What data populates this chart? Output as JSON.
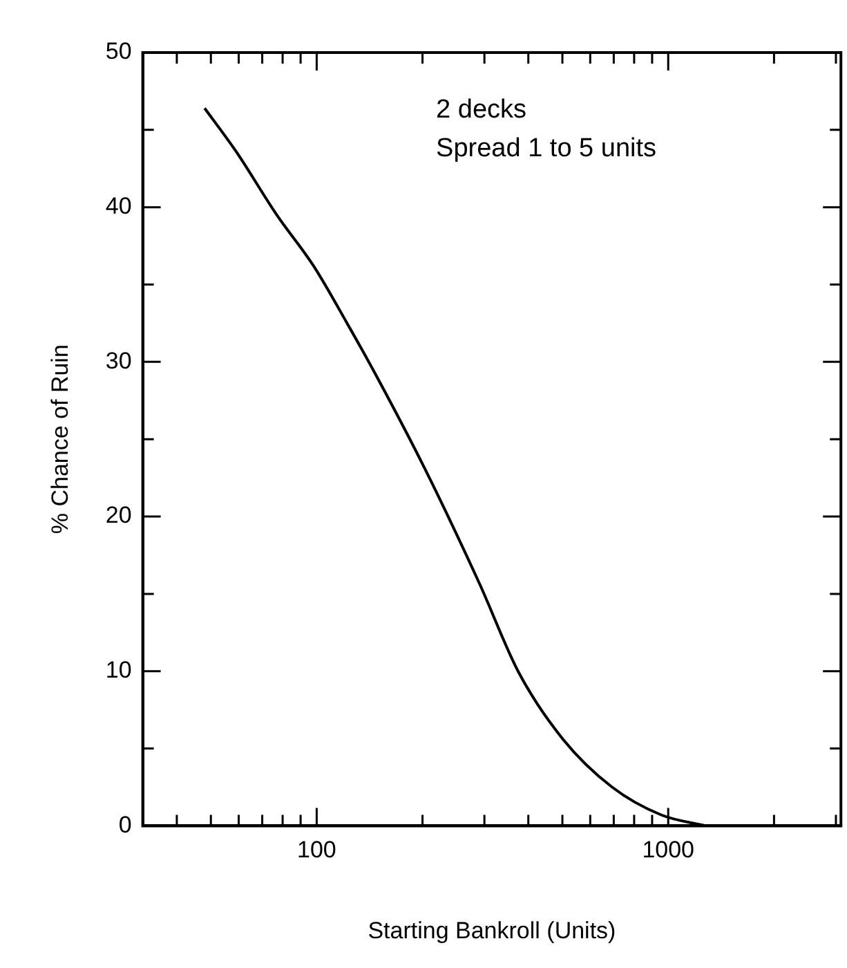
{
  "chart_data": {
    "type": "line",
    "xlabel": "Starting Bankroll (Units)",
    "ylabel": "% Chance of Ruin",
    "annotations": [
      "2 decks",
      "Spread 1 to 5 units"
    ],
    "log": "x",
    "grid": false,
    "legend": false,
    "marker": "none",
    "line_style": "solid",
    "xlim": [
      32,
      3100
    ],
    "ylim": [
      0,
      50
    ],
    "xticks": [
      {
        "value": 40,
        "label": null
      },
      {
        "value": 50,
        "label": null
      },
      {
        "value": 60,
        "label": null
      },
      {
        "value": 70,
        "label": null
      },
      {
        "value": 80,
        "label": null
      },
      {
        "value": 90,
        "label": null
      },
      100,
      {
        "value": 200,
        "label": null
      },
      {
        "value": 300,
        "label": null
      },
      {
        "value": 400,
        "label": null
      },
      {
        "value": 500,
        "label": null
      },
      {
        "value": 600,
        "label": null
      },
      {
        "value": 700,
        "label": null
      },
      {
        "value": 800,
        "label": null
      },
      {
        "value": 900,
        "label": null
      },
      1000,
      {
        "value": 2000,
        "label": null
      },
      {
        "value": 3000,
        "label": null
      }
    ],
    "yticks": [
      0,
      {
        "value": 5,
        "label": null
      },
      10,
      {
        "value": 15,
        "label": null
      },
      20,
      {
        "value": 25,
        "label": null
      },
      30,
      {
        "value": 35,
        "label": null
      },
      40,
      {
        "value": 45,
        "label": null
      },
      50
    ],
    "series": [
      {
        "color": "#000000",
        "x": [
          48,
          59,
          77,
          98,
          122,
          147,
          203,
          290,
          376,
          502,
          693,
          957,
          1280
        ],
        "values": [
          46.4,
          43.6,
          39.5,
          36.2,
          32.5,
          29.2,
          23.1,
          15.7,
          9.9,
          5.6,
          2.5,
          0.7,
          0
        ]
      }
    ]
  }
}
